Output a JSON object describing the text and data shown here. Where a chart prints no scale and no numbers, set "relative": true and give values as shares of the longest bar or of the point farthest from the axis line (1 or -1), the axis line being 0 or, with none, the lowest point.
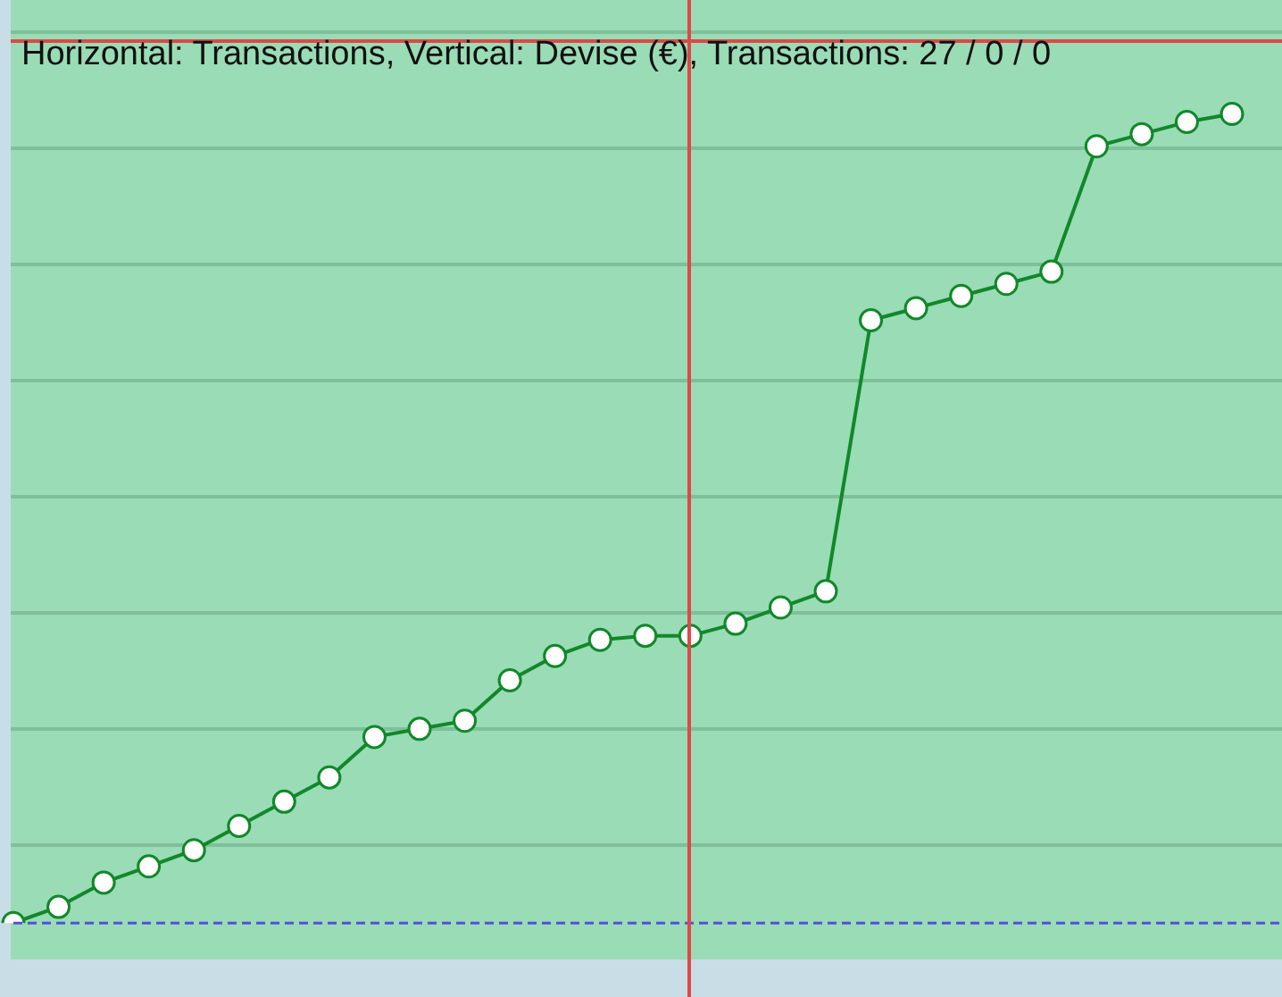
{
  "chart_data": {
    "type": "line",
    "title": "Horizontal: Transactions, Vertical: Devise (€), Transactions: 27 / 0 / 0",
    "relative": true,
    "categories": [
      null,
      null,
      null,
      null,
      null,
      null,
      null,
      null,
      null,
      null,
      null,
      null,
      null,
      null,
      null,
      null,
      null,
      null,
      null,
      null,
      null,
      null,
      null,
      null,
      null,
      null,
      null,
      null
    ],
    "series": [
      {
        "color": "#11882a",
        "values": [
          0,
          0.02,
          0.05,
          0.07,
          0.09,
          0.12,
          0.15,
          0.18,
          0.23,
          0.24,
          0.25,
          0.3,
          0.33,
          0.35,
          0.355,
          0.355,
          0.37,
          0.39,
          0.41,
          0.745,
          0.76,
          0.775,
          0.79,
          0.805,
          0.96,
          0.975,
          0.99,
          1
        ]
      }
    ],
    "marker": "circle",
    "legend": false
  }
}
